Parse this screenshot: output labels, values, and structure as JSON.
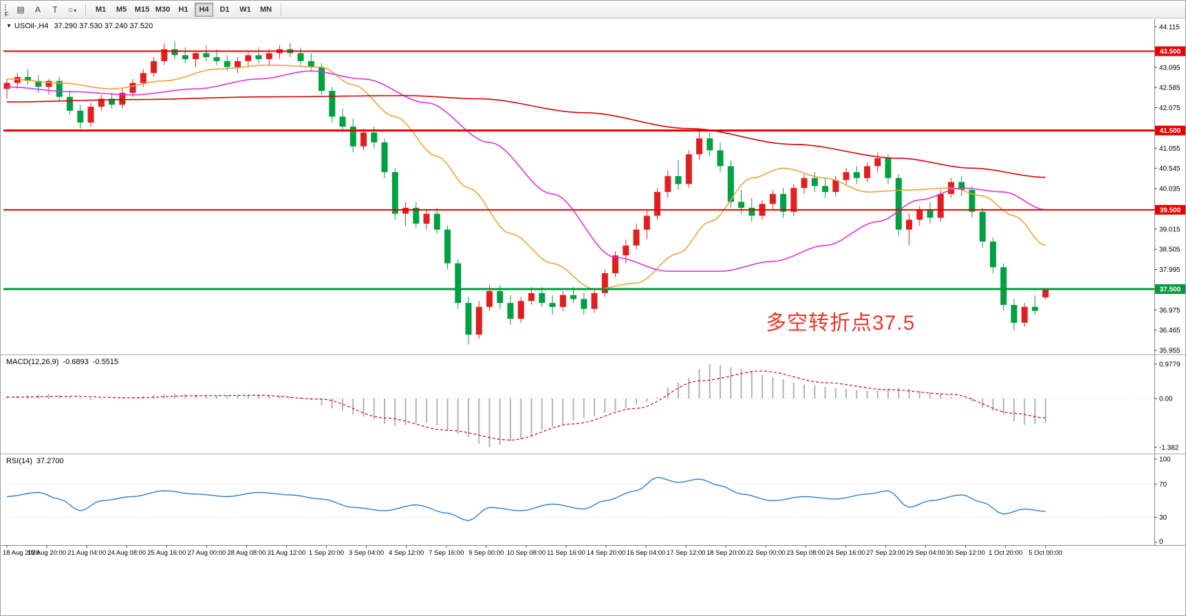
{
  "toolbar": {
    "f_label": "F",
    "tools": [
      {
        "name": "charts",
        "glyph": "▤"
      },
      {
        "name": "text",
        "glyph": "A"
      },
      {
        "name": "label",
        "glyph": "T"
      },
      {
        "name": "shapes",
        "glyph": "○"
      }
    ],
    "caret": "▾",
    "timeframes": [
      "M1",
      "M5",
      "M15",
      "M30",
      "H1",
      "H4",
      "D1",
      "W1",
      "MN"
    ],
    "active_timeframe": "H4"
  },
  "main_chart": {
    "marker": "▼",
    "title_symbol": "USOil-,H4",
    "title_ohlc": "37.290 37.530 37.240 37.520",
    "annotation": "多空转折点37.5"
  },
  "macd_panel": {
    "label": "MACD(12,26,9)",
    "main_value": "-0.6893",
    "signal_value": "-0.5515"
  },
  "rsi_panel": {
    "label": "RSI(14)",
    "value": "37.2700"
  },
  "chart_data": {
    "type": "candlestick",
    "symbol": "USOil",
    "period": "H4",
    "last_ohlc": {
      "open": 37.29,
      "high": 37.53,
      "low": 37.24,
      "close": 37.52
    },
    "price_range": [
      35.955,
      44.115
    ],
    "colors": {
      "up": "#e02020",
      "down": "#00a143",
      "ma_red": "#d40000",
      "ma_orange": "#eda235",
      "ma_magenta": "#e02fe0",
      "macd_hist": "#b3b3b3",
      "macd_signal": "#d40000",
      "rsi": "#2a7fd4",
      "hline_red": "#e60000",
      "hline_green": "#009a3c",
      "annotation": "#e8382e",
      "axis_text": "#000000"
    },
    "price_axis_visible": [
      "44.115",
      "43.095",
      "42.585",
      "42.075",
      "41.055",
      "40.545",
      "40.035",
      "39.015",
      "38.505",
      "37.995",
      "36.975",
      "36.465",
      "35.955"
    ],
    "horizontal_lines": [
      {
        "price": 43.5,
        "label": "43.500",
        "color_key": "hline_red",
        "weight": 2
      },
      {
        "price": 41.5,
        "label": "41.500",
        "color_key": "hline_red",
        "weight": 3
      },
      {
        "price": 39.5,
        "label": "39.500",
        "color_key": "hline_red",
        "weight": 2
      },
      {
        "price": 37.5,
        "label": "37.500",
        "color_key": "hline_green",
        "weight": 3
      }
    ],
    "candles": [
      [
        42.55,
        42.8,
        42.3,
        42.7
      ],
      [
        42.7,
        42.95,
        42.55,
        42.85
      ],
      [
        42.85,
        43.05,
        42.65,
        42.75
      ],
      [
        42.75,
        42.9,
        42.45,
        42.6
      ],
      [
        42.6,
        42.8,
        42.4,
        42.75
      ],
      [
        42.75,
        42.85,
        42.25,
        42.35
      ],
      [
        42.35,
        42.5,
        41.9,
        42.0
      ],
      [
        42.0,
        42.15,
        41.55,
        41.7
      ],
      [
        41.7,
        42.2,
        41.6,
        42.1
      ],
      [
        42.1,
        42.4,
        42.0,
        42.3
      ],
      [
        42.3,
        42.45,
        42.05,
        42.15
      ],
      [
        42.15,
        42.55,
        42.05,
        42.45
      ],
      [
        42.45,
        42.8,
        42.35,
        42.7
      ],
      [
        42.7,
        43.05,
        42.6,
        42.95
      ],
      [
        42.95,
        43.35,
        42.85,
        43.25
      ],
      [
        43.25,
        43.7,
        43.15,
        43.55
      ],
      [
        43.55,
        43.75,
        43.3,
        43.4
      ],
      [
        43.4,
        43.6,
        43.2,
        43.3
      ],
      [
        43.3,
        43.5,
        43.1,
        43.45
      ],
      [
        43.45,
        43.65,
        43.25,
        43.35
      ],
      [
        43.35,
        43.55,
        43.15,
        43.25
      ],
      [
        43.25,
        43.4,
        43.0,
        43.1
      ],
      [
        43.1,
        43.35,
        42.95,
        43.25
      ],
      [
        43.25,
        43.5,
        43.1,
        43.4
      ],
      [
        43.4,
        43.6,
        43.2,
        43.3
      ],
      [
        43.3,
        43.55,
        43.15,
        43.45
      ],
      [
        43.45,
        43.65,
        43.3,
        43.55
      ],
      [
        43.55,
        43.7,
        43.35,
        43.45
      ],
      [
        43.45,
        43.6,
        43.15,
        43.25
      ],
      [
        43.25,
        43.45,
        43.0,
        43.1
      ],
      [
        43.1,
        43.2,
        42.4,
        42.5
      ],
      [
        42.5,
        42.6,
        41.7,
        41.85
      ],
      [
        41.85,
        42.05,
        41.45,
        41.6
      ],
      [
        41.6,
        41.8,
        40.95,
        41.1
      ],
      [
        41.1,
        41.55,
        41.0,
        41.45
      ],
      [
        41.45,
        41.6,
        41.05,
        41.2
      ],
      [
        41.2,
        41.3,
        40.3,
        40.45
      ],
      [
        40.45,
        40.55,
        39.25,
        39.4
      ],
      [
        39.4,
        39.7,
        39.1,
        39.55
      ],
      [
        39.55,
        39.7,
        39.05,
        39.15
      ],
      [
        39.15,
        39.5,
        39.0,
        39.4
      ],
      [
        39.4,
        39.55,
        38.9,
        39.0
      ],
      [
        39.0,
        39.1,
        38.0,
        38.15
      ],
      [
        38.15,
        38.25,
        37.0,
        37.15
      ],
      [
        37.15,
        37.3,
        36.1,
        36.35
      ],
      [
        36.35,
        37.2,
        36.25,
        37.05
      ],
      [
        37.05,
        37.6,
        36.95,
        37.45
      ],
      [
        37.45,
        37.6,
        37.0,
        37.15
      ],
      [
        37.15,
        37.35,
        36.6,
        36.75
      ],
      [
        36.75,
        37.3,
        36.65,
        37.2
      ],
      [
        37.2,
        37.55,
        37.1,
        37.4
      ],
      [
        37.4,
        37.55,
        37.05,
        37.15
      ],
      [
        37.15,
        37.35,
        36.85,
        37.05
      ],
      [
        37.05,
        37.45,
        36.95,
        37.35
      ],
      [
        37.35,
        37.55,
        37.15,
        37.25
      ],
      [
        37.25,
        37.4,
        36.85,
        37.0
      ],
      [
        37.0,
        37.5,
        36.9,
        37.4
      ],
      [
        37.4,
        38.0,
        37.3,
        37.9
      ],
      [
        37.9,
        38.45,
        37.8,
        38.35
      ],
      [
        38.35,
        38.75,
        38.15,
        38.6
      ],
      [
        38.6,
        39.15,
        38.5,
        39.0
      ],
      [
        39.0,
        39.5,
        38.75,
        39.35
      ],
      [
        39.35,
        40.05,
        39.25,
        39.95
      ],
      [
        39.95,
        40.5,
        39.8,
        40.35
      ],
      [
        40.35,
        40.75,
        40.0,
        40.15
      ],
      [
        40.15,
        41.0,
        40.05,
        40.9
      ],
      [
        40.9,
        41.5,
        40.75,
        41.3
      ],
      [
        41.3,
        41.45,
        40.85,
        41.0
      ],
      [
        41.0,
        41.2,
        40.45,
        40.6
      ],
      [
        40.6,
        40.75,
        39.55,
        39.7
      ],
      [
        39.7,
        40.0,
        39.4,
        39.55
      ],
      [
        39.55,
        39.8,
        39.2,
        39.35
      ],
      [
        39.35,
        39.75,
        39.25,
        39.65
      ],
      [
        39.65,
        40.0,
        39.5,
        39.9
      ],
      [
        39.9,
        40.05,
        39.3,
        39.45
      ],
      [
        39.45,
        40.15,
        39.35,
        40.05
      ],
      [
        40.05,
        40.4,
        39.9,
        40.3
      ],
      [
        40.3,
        40.45,
        39.95,
        40.1
      ],
      [
        40.1,
        40.3,
        39.8,
        39.95
      ],
      [
        39.95,
        40.35,
        39.85,
        40.25
      ],
      [
        40.25,
        40.55,
        40.1,
        40.45
      ],
      [
        40.45,
        40.6,
        40.15,
        40.3
      ],
      [
        40.3,
        40.7,
        40.2,
        40.6
      ],
      [
        40.6,
        40.95,
        40.45,
        40.8
      ],
      [
        40.8,
        40.9,
        40.15,
        40.3
      ],
      [
        40.3,
        40.4,
        38.85,
        39.0
      ],
      [
        39.0,
        39.4,
        38.6,
        39.25
      ],
      [
        39.25,
        39.6,
        39.1,
        39.5
      ],
      [
        39.5,
        39.7,
        39.15,
        39.3
      ],
      [
        39.3,
        40.0,
        39.2,
        39.9
      ],
      [
        39.9,
        40.3,
        39.8,
        40.2
      ],
      [
        40.2,
        40.35,
        39.85,
        40.0
      ],
      [
        40.0,
        40.1,
        39.3,
        39.45
      ],
      [
        39.45,
        39.55,
        38.55,
        38.7
      ],
      [
        38.7,
        38.8,
        37.9,
        38.05
      ],
      [
        38.05,
        38.15,
        36.95,
        37.1
      ],
      [
        37.1,
        37.25,
        36.45,
        36.65
      ],
      [
        36.65,
        37.15,
        36.55,
        37.05
      ],
      [
        37.05,
        37.35,
        36.85,
        36.95
      ],
      [
        37.29,
        37.53,
        37.24,
        37.52
      ]
    ],
    "moving_averages": [
      {
        "name": "ma-fast-orange",
        "color_key": "ma_orange",
        "x": [
          0,
          5,
          10,
          15,
          20,
          25,
          30,
          33,
          37,
          41,
          44,
          48,
          52,
          56,
          60,
          64,
          67,
          71,
          74,
          78,
          82,
          86,
          90,
          93,
          96,
          99
        ],
        "v": [
          42.8,
          42.7,
          42.55,
          42.75,
          43.05,
          43.15,
          43.1,
          42.65,
          41.85,
          40.85,
          40.05,
          38.9,
          38.15,
          37.5,
          37.65,
          38.4,
          39.2,
          40.3,
          40.55,
          40.3,
          39.95,
          40.0,
          40.05,
          39.85,
          39.35,
          38.6
        ]
      },
      {
        "name": "ma-mid-magenta",
        "color_key": "ma_magenta",
        "x": [
          0,
          6,
          12,
          18,
          24,
          29,
          34,
          40,
          46,
          52,
          58,
          63,
          68,
          73,
          78,
          83,
          87,
          91,
          95,
          99
        ],
        "v": [
          42.6,
          42.48,
          42.4,
          42.55,
          42.8,
          43.0,
          42.8,
          42.2,
          41.2,
          39.9,
          38.3,
          37.95,
          37.95,
          38.2,
          38.6,
          39.2,
          39.75,
          40.05,
          39.95,
          39.5
        ]
      },
      {
        "name": "ma-slow-red",
        "color_key": "ma_red",
        "x": [
          0,
          12,
          25,
          38,
          45,
          55,
          65,
          75,
          85,
          92,
          99
        ],
        "v": [
          42.22,
          42.28,
          42.35,
          42.38,
          42.3,
          41.95,
          41.55,
          41.15,
          40.8,
          40.55,
          40.32
        ]
      }
    ],
    "macd": {
      "axis": [
        {
          "v": 0.9779,
          "label": "0.9779"
        },
        {
          "v": 0,
          "label": "0.00"
        },
        {
          "v": -1.382,
          "label": "-1.382"
        }
      ],
      "hist": {
        "x": [
          0,
          4,
          8,
          12,
          16,
          20,
          24,
          28,
          31,
          34,
          37,
          40,
          43,
          46,
          49,
          52,
          55,
          58,
          61,
          64,
          67,
          70,
          73,
          76,
          79,
          82,
          85,
          88,
          91,
          94,
          97,
          99
        ],
        "v": [
          0.06,
          0.12,
          -0.04,
          0.05,
          0.14,
          0.08,
          0.12,
          0.04,
          -0.28,
          -0.52,
          -0.78,
          -0.68,
          -1.0,
          -1.38,
          -1.15,
          -0.8,
          -0.55,
          -0.35,
          -0.1,
          0.45,
          0.98,
          0.85,
          0.6,
          0.4,
          0.3,
          0.22,
          0.3,
          0.18,
          0.0,
          -0.35,
          -0.75,
          -0.69
        ]
      },
      "signal": {
        "x": [
          0,
          6,
          12,
          18,
          24,
          30,
          36,
          42,
          48,
          54,
          60,
          66,
          72,
          78,
          84,
          90,
          96,
          99
        ],
        "v": [
          0.04,
          0.06,
          0.02,
          0.08,
          0.09,
          -0.02,
          -0.55,
          -0.9,
          -1.18,
          -0.72,
          -0.28,
          0.5,
          0.78,
          0.45,
          0.25,
          0.12,
          -0.42,
          -0.55
        ]
      }
    },
    "rsi": {
      "axis": [
        {
          "v": 100,
          "label": "100"
        },
        {
          "v": 70,
          "label": "70"
        },
        {
          "v": 30,
          "label": "30"
        },
        {
          "v": 0,
          "label": "0"
        }
      ],
      "levels": [
        70,
        30
      ],
      "points": {
        "x": [
          0,
          3,
          5,
          7,
          9,
          12,
          15,
          18,
          21,
          24,
          27,
          30,
          33,
          36,
          39,
          42,
          44,
          46,
          49,
          52,
          55,
          57,
          60,
          62,
          64,
          66,
          68,
          70,
          73,
          76,
          79,
          82,
          84,
          86,
          88,
          91,
          93,
          95,
          97,
          99
        ],
        "v": [
          55,
          60,
          52,
          38,
          50,
          55,
          62,
          58,
          55,
          60,
          57,
          52,
          42,
          38,
          45,
          35,
          26,
          42,
          38,
          46,
          40,
          50,
          62,
          78,
          72,
          76,
          68,
          58,
          50,
          55,
          52,
          58,
          62,
          42,
          50,
          57,
          48,
          34,
          40,
          37.27
        ]
      }
    },
    "x_labels": [
      "18 Aug 2020",
      "19 Aug 20:00",
      "21 Aug 04:00",
      "24 Aug 08:00",
      "25 Aug 16:00",
      "27 Aug 00:00",
      "28 Aug 08:00",
      "31 Aug 12:00",
      "1 Sep 20:00",
      "3 Sep 04:00",
      "4 Sep 12:00",
      "7 Sep 16:00",
      "9 Sep 00:00",
      "10 Sep 08:00",
      "11 Sep 16:00",
      "14 Sep 20:00",
      "16 Sep 04:00",
      "17 Sep 12:00",
      "18 Sep 20:00",
      "22 Sep 00:00",
      "23 Sep 08:00",
      "24 Sep 16:00",
      "27 Sep 23:00",
      "29 Sep 04:00",
      "30 Sep 12:00",
      "1 Oct 20:00",
      "5 Oct 00:00"
    ]
  }
}
